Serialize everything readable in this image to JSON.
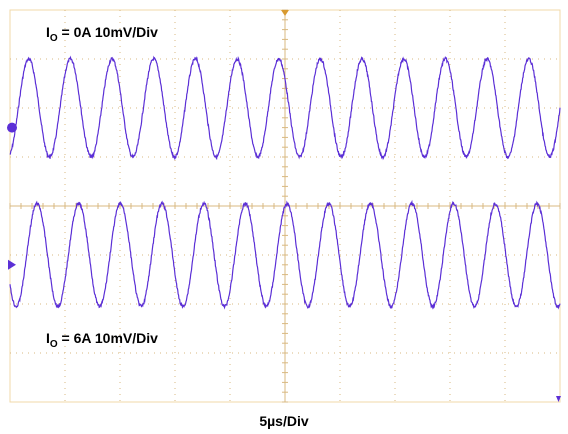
{
  "chart_data": {
    "type": "line",
    "xlabel": "5µs/Div",
    "grid": true,
    "colors": {
      "background": "#ffffff",
      "frame": "#f0d9a8",
      "axis": "#d89a30",
      "grid_dot": "#d9b880",
      "trace": "#5b2fd6",
      "marker_trigger": "#d89a30",
      "marker_channel": "#5b2fd6"
    },
    "divisions": {
      "x": 10,
      "y": 8
    },
    "traces": [
      {
        "label_main": "I",
        "label_sub": "O",
        "label_rest": " = 0A 10mV/Div",
        "cycles": 13.2,
        "center_div": 2.0,
        "amplitude_div": 1.0
      },
      {
        "label_main": "I",
        "label_sub": "O",
        "label_rest": " = 6A 10mV/Div",
        "cycles": 13.2,
        "center_div": 5.0,
        "amplitude_div": 1.05
      }
    ]
  }
}
